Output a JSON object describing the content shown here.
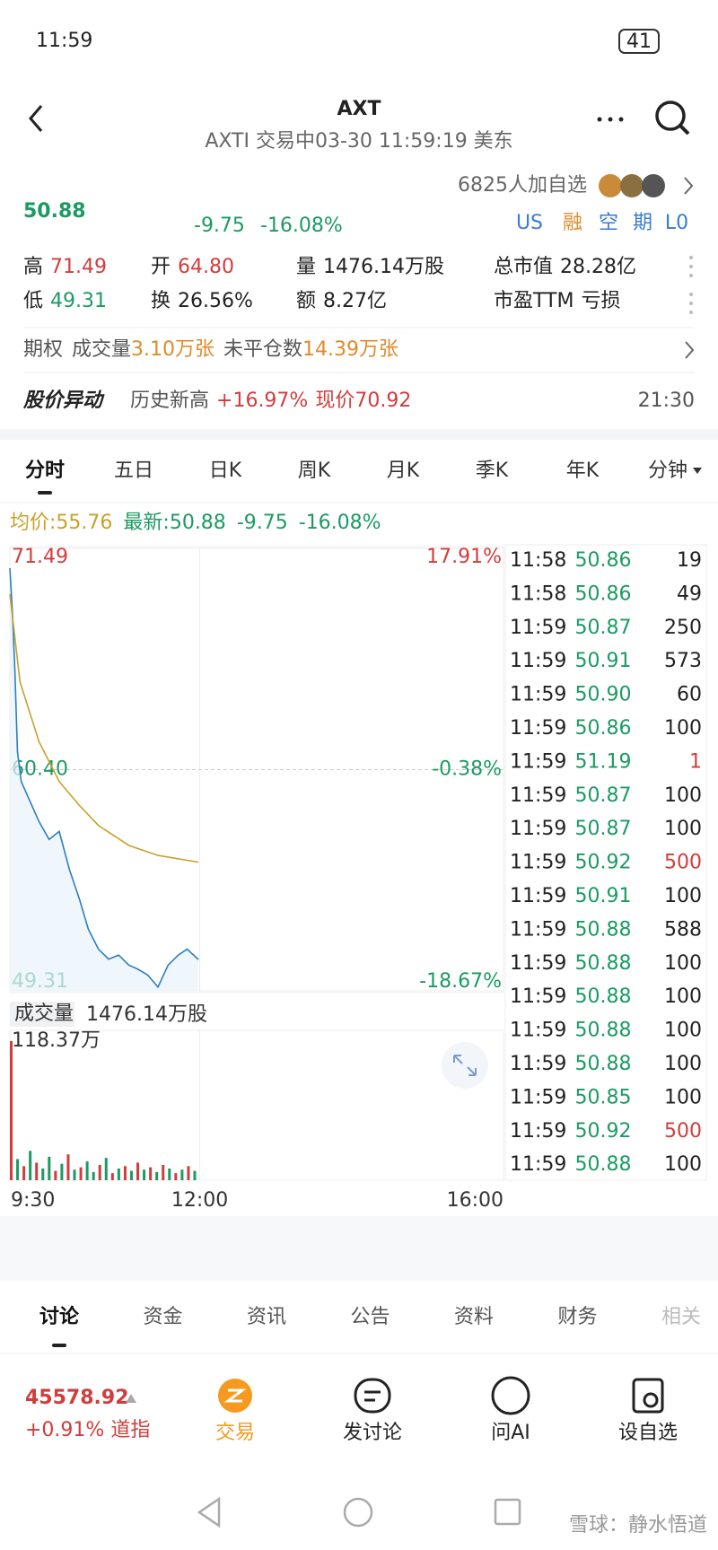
{
  "status": {
    "time": "11:59",
    "battery": "41"
  },
  "header": {
    "title": "AXT",
    "subtitle": "AXTI 交易中03-30 11:59:19 美东"
  },
  "quote": {
    "price": "50.88",
    "change": "-9.75",
    "percent": "-16.08%",
    "watchers": "6825人加自选",
    "tags": [
      "US",
      "融",
      "空",
      "期",
      "L0"
    ]
  },
  "stats": [
    [
      {
        "label": "高",
        "value": "71.49",
        "color": "#d23c3c"
      },
      {
        "label": "开",
        "value": "64.80",
        "color": "#d23c3c"
      },
      {
        "label": "量",
        "value": "1476.14万股",
        "color": "#222"
      },
      {
        "label": "总市值",
        "value": "28.28亿",
        "color": "#222"
      }
    ],
    [
      {
        "label": "低",
        "value": "49.31",
        "color": "#1c9a62"
      },
      {
        "label": "换",
        "value": "26.56%",
        "color": "#222"
      },
      {
        "label": "额",
        "value": "8.27亿",
        "color": "#222"
      },
      {
        "label": "市盈TTM",
        "value": "亏损",
        "color": "#222"
      }
    ]
  ],
  "options": {
    "label": "期权",
    "volume_label": "成交量",
    "volume": "3.10万张",
    "open_label": "未平仓数",
    "open": "14.39万张"
  },
  "alert": {
    "title": "股价异动",
    "text": "历史新高",
    "change": "+16.97%",
    "price": "现价70.92",
    "time": "21:30"
  },
  "tabs": [
    "分时",
    "五日",
    "日K",
    "周K",
    "月K",
    "季K",
    "年K",
    "分钟"
  ],
  "legend": {
    "avg": "均价:55.76",
    "latest": "最新:50.88",
    "change": "-9.75",
    "percent": "-16.08%"
  },
  "chart_data": {
    "type": "line",
    "x": [
      0,
      2,
      4,
      6,
      9,
      16,
      23,
      31,
      39,
      47,
      55,
      62,
      70,
      78,
      86,
      94,
      101,
      109,
      117,
      125,
      133,
      140,
      149
    ],
    "series": [
      {
        "name": "最新",
        "color": "#2a7fc0",
        "values": [
          70.5,
          68.3,
          65.3,
          61.3,
          59.8,
          58.8,
          57.8,
          56.9,
          57.3,
          55.4,
          53.9,
          52.4,
          51.4,
          50.9,
          51.1,
          50.6,
          50.4,
          50.1,
          49.5,
          50.6,
          51.1,
          51.4,
          50.88
        ]
      },
      {
        "name": "均价",
        "color": "#c9a02a",
        "x": [
          0,
          8,
          23,
          39,
          55,
          70,
          94,
          117,
          149
        ],
        "values": [
          69.2,
          64.8,
          61.8,
          59.8,
          58.6,
          57.6,
          56.6,
          56.1,
          55.76
        ]
      }
    ],
    "xlim": [
      0,
      390
    ],
    "xticks": [
      {
        "value": 0,
        "label": "9:30"
      },
      {
        "value": 150,
        "label": "12:00"
      },
      {
        "value": 390,
        "label": "16:00"
      }
    ],
    "ylim": [
      49.31,
      71.49
    ],
    "yticks": [
      49.31,
      {
        "value": 60.4,
        "label": "60.40"
      },
      71.49
    ],
    "y2lim": [
      -18.67,
      17.91
    ],
    "y2ticks": [
      {
        "value": -18.67,
        "label": "-18.67%"
      },
      {
        "value": -0.38,
        "label": "-0.38%"
      },
      {
        "value": 17.91,
        "label": "17.91%"
      }
    ]
  },
  "volume_chart": {
    "type": "bar",
    "label": "成交量",
    "total": "1476.14万股",
    "x": [
      0,
      5,
      10,
      15,
      20,
      25,
      30,
      35,
      40,
      45,
      50,
      55,
      60,
      65,
      70,
      75,
      80,
      85,
      90,
      95,
      100,
      105,
      110,
      115,
      120,
      125,
      130,
      135,
      140,
      145
    ],
    "values": [
      118.37,
      18,
      12,
      25,
      15,
      10,
      20,
      8,
      14,
      22,
      9,
      11,
      16,
      7,
      13,
      19,
      6,
      10,
      12,
      8,
      15,
      9,
      11,
      7,
      13,
      10,
      6,
      9,
      12,
      8
    ],
    "colors": [
      "#d23c3c",
      "#1c9a62",
      "#d23c3c",
      "#1c9a62",
      "#d23c3c",
      "#1c9a62",
      "#1c9a62",
      "#d23c3c",
      "#1c9a62",
      "#d23c3c",
      "#1c9a62",
      "#d23c3c",
      "#1c9a62",
      "#1c9a62",
      "#d23c3c",
      "#1c9a62",
      "#d23c3c",
      "#1c9a62",
      "#d23c3c",
      "#1c9a62",
      "#d23c3c",
      "#1c9a62",
      "#d23c3c",
      "#1c9a62",
      "#d23c3c",
      "#1c9a62",
      "#d23c3c",
      "#1c9a62",
      "#d23c3c",
      "#1c9a62"
    ],
    "ylim": [
      0,
      118.37
    ],
    "yticks": [
      {
        "value": 118.37,
        "label": "118.37万"
      }
    ]
  },
  "trades": [
    [
      "11:58",
      "50.86",
      "19",
      "#222"
    ],
    [
      "11:58",
      "50.86",
      "49",
      "#222"
    ],
    [
      "11:59",
      "50.87",
      "250",
      "#222"
    ],
    [
      "11:59",
      "50.91",
      "573",
      "#222"
    ],
    [
      "11:59",
      "50.90",
      "60",
      "#222"
    ],
    [
      "11:59",
      "50.86",
      "100",
      "#222"
    ],
    [
      "11:59",
      "51.19",
      "1",
      "#d23c3c"
    ],
    [
      "11:59",
      "50.87",
      "100",
      "#222"
    ],
    [
      "11:59",
      "50.87",
      "100",
      "#222"
    ],
    [
      "11:59",
      "50.92",
      "500",
      "#d23c3c"
    ],
    [
      "11:59",
      "50.91",
      "100",
      "#222"
    ],
    [
      "11:59",
      "50.88",
      "588",
      "#222"
    ],
    [
      "11:59",
      "50.88",
      "100",
      "#222"
    ],
    [
      "11:59",
      "50.88",
      "100",
      "#222"
    ],
    [
      "11:59",
      "50.88",
      "100",
      "#222"
    ],
    [
      "11:59",
      "50.88",
      "100",
      "#222"
    ],
    [
      "11:59",
      "50.85",
      "100",
      "#222"
    ],
    [
      "11:59",
      "50.92",
      "500",
      "#d23c3c"
    ],
    [
      "11:59",
      "50.88",
      "100",
      "#222"
    ]
  ],
  "bottom_tabs": [
    "讨论",
    "资金",
    "资讯",
    "公告",
    "资料",
    "财务",
    "相关"
  ],
  "index": {
    "value": "45578.92",
    "change": "+0.91% 道指"
  },
  "actions": [
    "交易",
    "发讨论",
    "问AI",
    "设自选"
  ],
  "watermark": "雪球：静水悟道"
}
